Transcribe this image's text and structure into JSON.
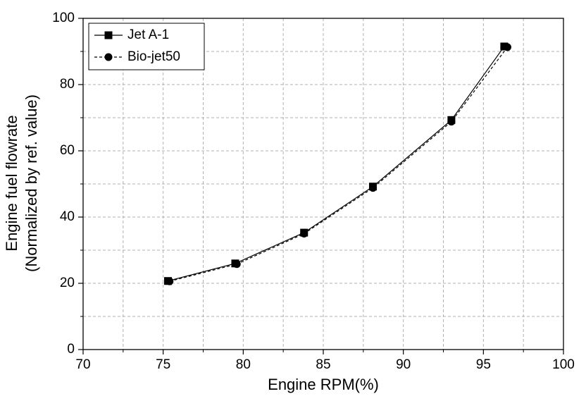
{
  "chart_data": {
    "type": "line",
    "xlabel": "Engine RPM(%)",
    "ylabel": [
      "Engine fuel flowrate",
      "(Normalized by ref. value)"
    ],
    "x": [
      75.3,
      79.5,
      83.8,
      88.1,
      93.0,
      96.3
    ],
    "series": [
      {
        "name": "Jet A-1",
        "color": "#000000",
        "linestyle": "solid",
        "marker": "square",
        "x": [
          75.3,
          79.5,
          83.8,
          88.1,
          93.0,
          96.3
        ],
        "values": [
          20.7,
          26.0,
          35.3,
          49.2,
          69.3,
          91.5
        ]
      },
      {
        "name": "Bio-jet50",
        "color": "#000000",
        "linestyle": "dashed",
        "marker": "circle",
        "x": [
          75.4,
          79.6,
          83.8,
          88.1,
          93.0,
          96.5
        ],
        "values": [
          20.6,
          25.8,
          35.0,
          48.8,
          68.8,
          91.3
        ]
      }
    ],
    "xlim": [
      70,
      100
    ],
    "xticks": [
      70,
      75,
      80,
      85,
      90,
      95,
      100
    ],
    "xminorticks": [
      72.5,
      77.5,
      82.5,
      87.5,
      92.5,
      97.5
    ],
    "ylim": [
      0,
      100
    ],
    "yticks": [
      0,
      20,
      40,
      60,
      80,
      100
    ],
    "yminorticks": [
      10,
      30,
      50,
      70,
      90
    ],
    "grid": true,
    "legend": "upper left"
  }
}
